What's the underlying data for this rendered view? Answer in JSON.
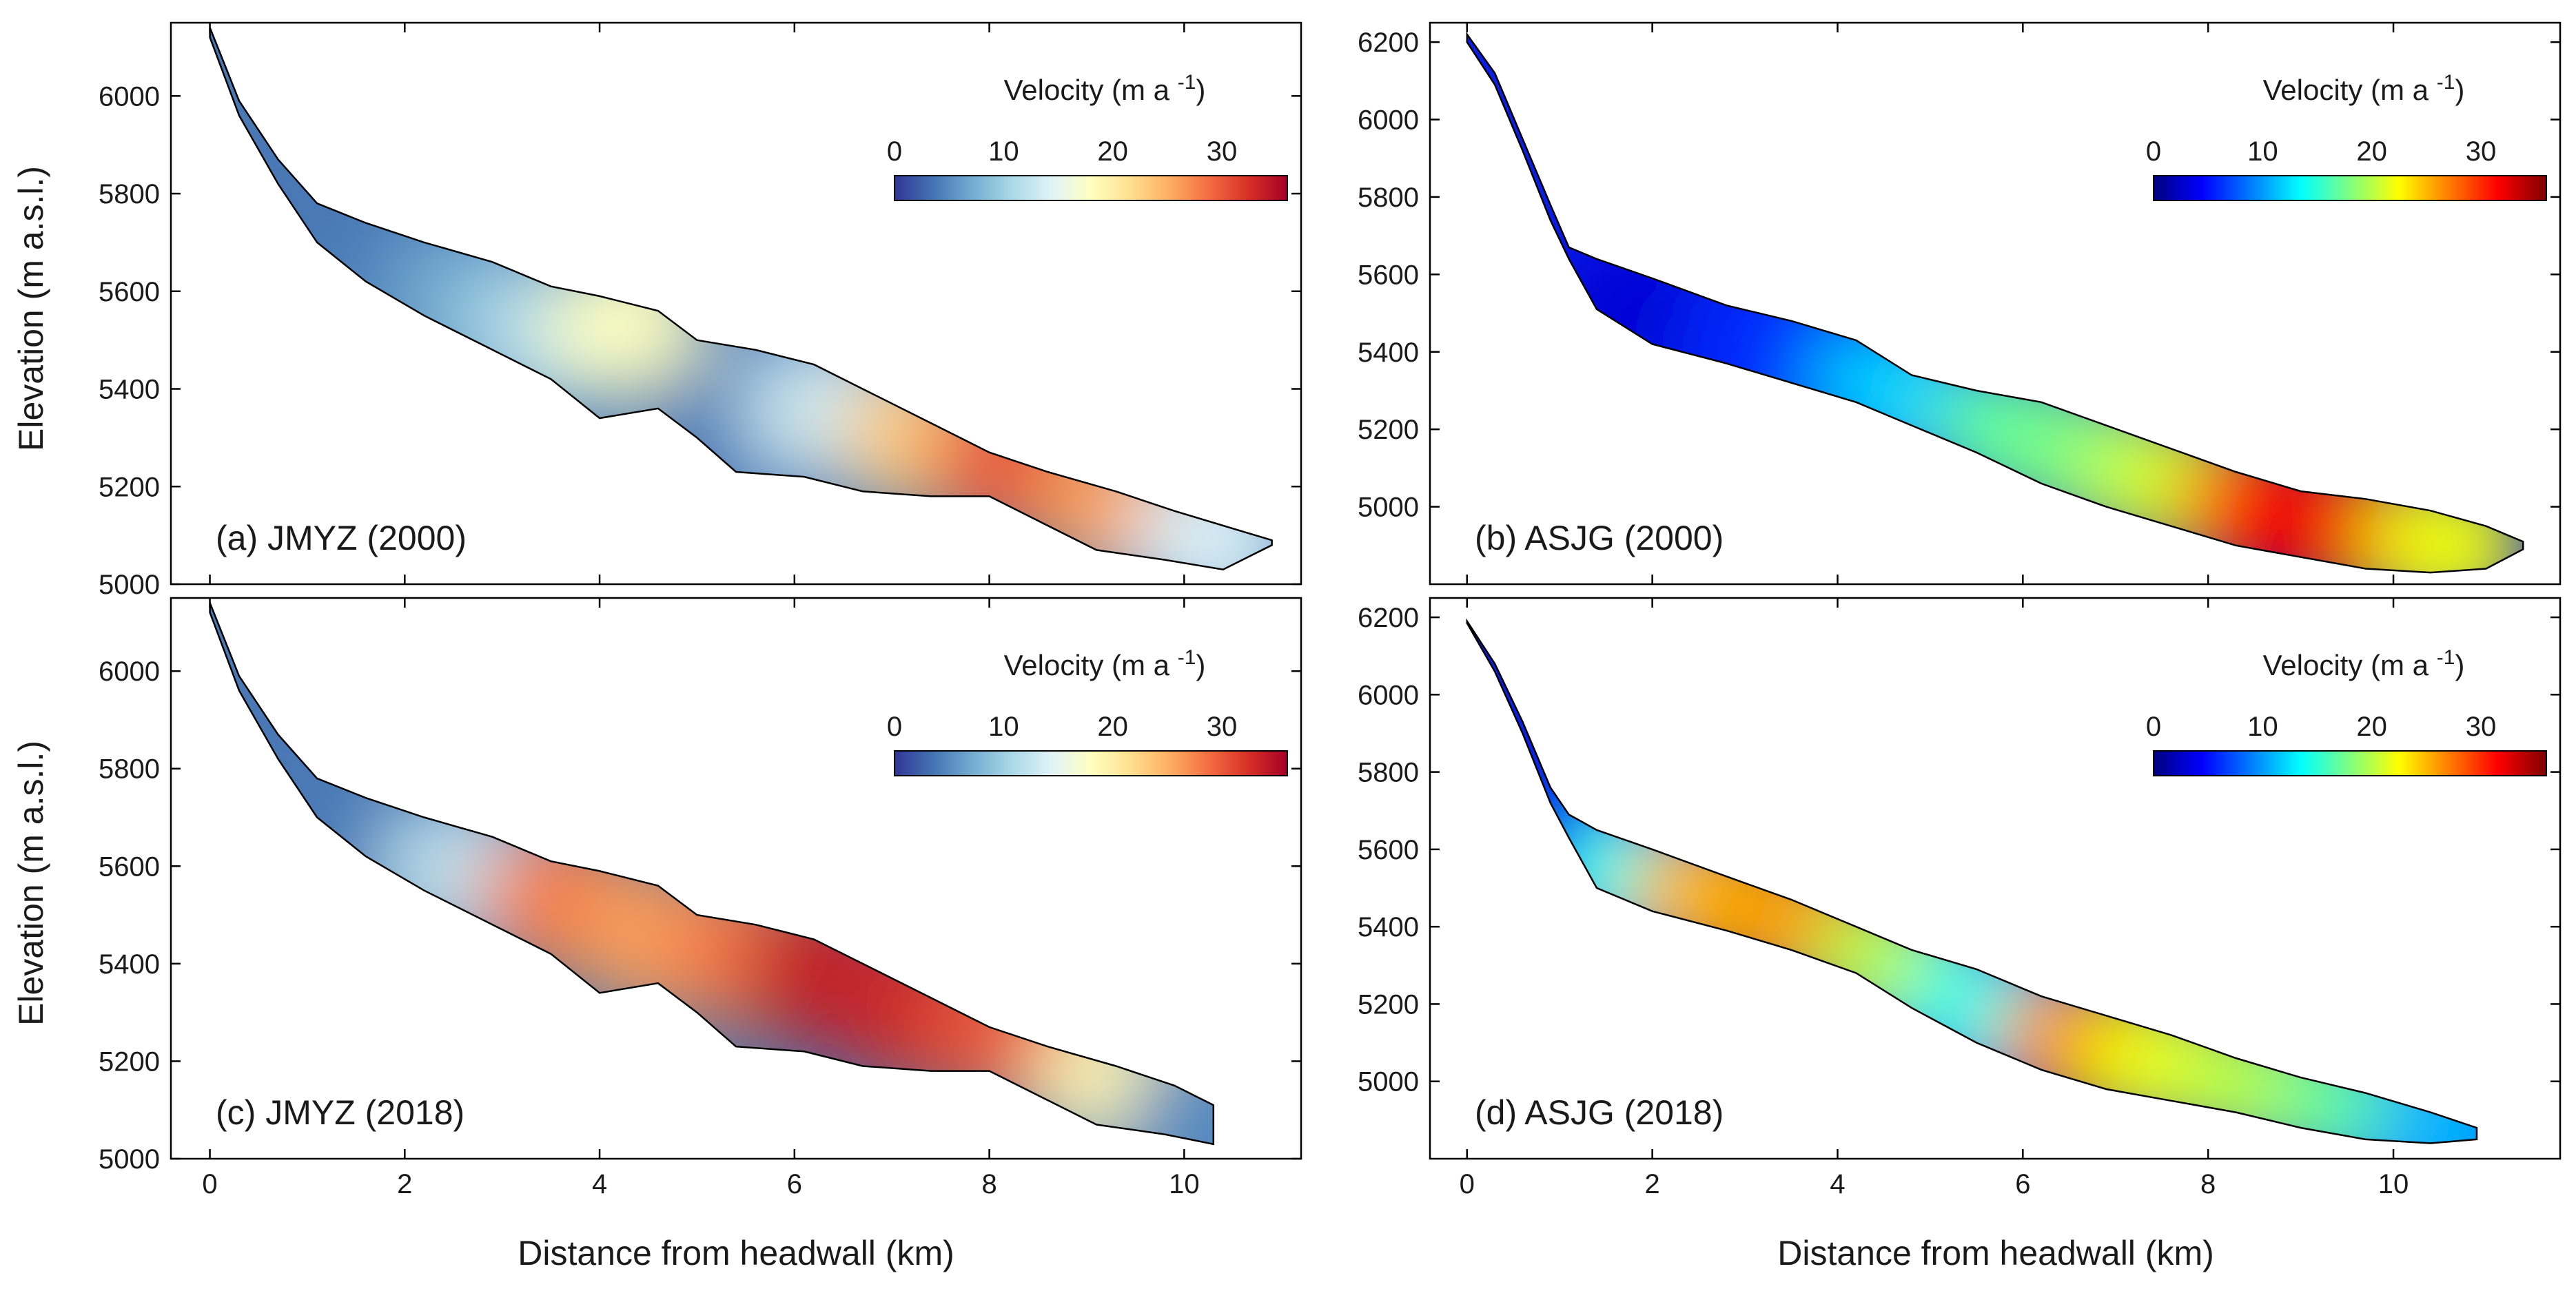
{
  "figure": {
    "ylabel": "Elevation (m a.s.l.)",
    "xlabel": "Distance from headwall (km)"
  },
  "chart_data": [
    {
      "panel": "a",
      "type": "heatmap",
      "title": "(a) JMYZ (2000)",
      "colorbar_label": "Velocity (m a",
      "colorbar_sup": "-1",
      "colorbar_close": ")",
      "colorbar_ticks": [
        "0",
        "10",
        "20",
        "30"
      ],
      "colorbar_range": [
        0,
        36
      ],
      "colormap": "RdYlBu",
      "xlim": [
        -0.4,
        11.2
      ],
      "ylim": [
        5000,
        6150
      ],
      "xticks": [
        "0",
        "2",
        "4",
        "6",
        "8",
        "10"
      ],
      "yticks": [
        "5000",
        "5200",
        "5400",
        "5600",
        "5800",
        "6000"
      ],
      "upper_boundary": [
        [
          0,
          6140
        ],
        [
          0.3,
          5990
        ],
        [
          0.7,
          5870
        ],
        [
          1.1,
          5780
        ],
        [
          1.6,
          5740
        ],
        [
          2.2,
          5700
        ],
        [
          2.9,
          5660
        ],
        [
          3.5,
          5610
        ],
        [
          4.0,
          5590
        ],
        [
          4.6,
          5560
        ],
        [
          5.0,
          5500
        ],
        [
          5.6,
          5480
        ],
        [
          6.2,
          5450
        ],
        [
          6.8,
          5390
        ],
        [
          7.4,
          5330
        ],
        [
          8.0,
          5270
        ],
        [
          8.6,
          5230
        ],
        [
          9.3,
          5190
        ],
        [
          9.9,
          5150
        ],
        [
          10.4,
          5120
        ],
        [
          10.9,
          5090
        ]
      ],
      "lower_boundary": [
        [
          0,
          6120
        ],
        [
          0.3,
          5960
        ],
        [
          0.7,
          5820
        ],
        [
          1.1,
          5700
        ],
        [
          1.6,
          5620
        ],
        [
          2.2,
          5550
        ],
        [
          2.9,
          5480
        ],
        [
          3.5,
          5420
        ],
        [
          4.0,
          5340
        ],
        [
          4.6,
          5360
        ],
        [
          5.0,
          5300
        ],
        [
          5.4,
          5230
        ],
        [
          6.1,
          5220
        ],
        [
          6.7,
          5190
        ],
        [
          7.4,
          5180
        ],
        [
          8.0,
          5180
        ],
        [
          8.6,
          5120
        ],
        [
          9.1,
          5070
        ],
        [
          9.8,
          5050
        ],
        [
          10.4,
          5030
        ],
        [
          10.9,
          5080
        ]
      ],
      "hotspots": [
        {
          "x": 1.3,
          "y": 5600,
          "v": 4
        },
        {
          "x": 2.6,
          "y": 5590,
          "v": 7
        },
        {
          "x": 3.4,
          "y": 5510,
          "v": 11
        },
        {
          "x": 4.3,
          "y": 5530,
          "v": 18
        },
        {
          "x": 5.3,
          "y": 5330,
          "v": 4
        },
        {
          "x": 6.3,
          "y": 5360,
          "v": 13
        },
        {
          "x": 7.3,
          "y": 5300,
          "v": 23
        },
        {
          "x": 8.2,
          "y": 5250,
          "v": 30
        },
        {
          "x": 9.3,
          "y": 5160,
          "v": 26
        },
        {
          "x": 10.3,
          "y": 5090,
          "v": 14
        }
      ]
    },
    {
      "panel": "b",
      "type": "heatmap",
      "title": "(b) ASJG (2000)",
      "colorbar_label": "Velocity (m a",
      "colorbar_sup": "-1",
      "colorbar_close": ")",
      "colorbar_ticks": [
        "0",
        "10",
        "20",
        "30"
      ],
      "colorbar_range": [
        0,
        36
      ],
      "colormap": "jet",
      "xlim": [
        -0.4,
        11.8
      ],
      "ylim": [
        4800,
        6250
      ],
      "xticks": [
        "0",
        "2",
        "4",
        "6",
        "8",
        "10"
      ],
      "yticks": [
        "5000",
        "5200",
        "5400",
        "5600",
        "5800",
        "6000",
        "6200"
      ],
      "upper_boundary": [
        [
          0,
          6220
        ],
        [
          0.3,
          6120
        ],
        [
          0.6,
          5950
        ],
        [
          0.9,
          5780
        ],
        [
          1.1,
          5670
        ],
        [
          1.4,
          5640
        ],
        [
          2.0,
          5590
        ],
        [
          2.8,
          5520
        ],
        [
          3.5,
          5480
        ],
        [
          4.2,
          5430
        ],
        [
          4.8,
          5340
        ],
        [
          5.5,
          5300
        ],
        [
          6.2,
          5270
        ],
        [
          6.9,
          5210
        ],
        [
          7.6,
          5150
        ],
        [
          8.3,
          5090
        ],
        [
          9.0,
          5040
        ],
        [
          9.7,
          5020
        ],
        [
          10.4,
          4990
        ],
        [
          11.0,
          4950
        ],
        [
          11.4,
          4910
        ]
      ],
      "lower_boundary": [
        [
          0,
          6200
        ],
        [
          0.3,
          6090
        ],
        [
          0.6,
          5920
        ],
        [
          0.9,
          5740
        ],
        [
          1.1,
          5640
        ],
        [
          1.4,
          5510
        ],
        [
          2.0,
          5420
        ],
        [
          2.8,
          5370
        ],
        [
          3.5,
          5320
        ],
        [
          4.2,
          5270
        ],
        [
          4.8,
          5210
        ],
        [
          5.5,
          5140
        ],
        [
          6.2,
          5060
        ],
        [
          6.9,
          5000
        ],
        [
          7.6,
          4950
        ],
        [
          8.3,
          4900
        ],
        [
          9.0,
          4870
        ],
        [
          9.7,
          4840
        ],
        [
          10.4,
          4830
        ],
        [
          11.0,
          4840
        ],
        [
          11.4,
          4890
        ]
      ],
      "hotspots": [
        {
          "x": 1.8,
          "y": 5500,
          "v": 3
        },
        {
          "x": 3.2,
          "y": 5420,
          "v": 6
        },
        {
          "x": 4.6,
          "y": 5300,
          "v": 12
        },
        {
          "x": 5.9,
          "y": 5190,
          "v": 17
        },
        {
          "x": 6.8,
          "y": 5120,
          "v": 18
        },
        {
          "x": 7.6,
          "y": 5060,
          "v": 21
        },
        {
          "x": 8.6,
          "y": 4990,
          "v": 31
        },
        {
          "x": 9.6,
          "y": 4940,
          "v": 32
        },
        {
          "x": 10.6,
          "y": 4900,
          "v": 22
        }
      ]
    },
    {
      "panel": "c",
      "type": "heatmap",
      "title": "(c) JMYZ (2018)",
      "colorbar_label": "Velocity (m a",
      "colorbar_sup": "-1",
      "colorbar_close": ")",
      "colorbar_ticks": [
        "0",
        "10",
        "20",
        "30"
      ],
      "colorbar_range": [
        0,
        36
      ],
      "colormap": "RdYlBu",
      "xlim": [
        -0.4,
        11.2
      ],
      "ylim": [
        5000,
        6150
      ],
      "xticks": [
        "0",
        "2",
        "4",
        "6",
        "8",
        "10"
      ],
      "yticks": [
        "5000",
        "5200",
        "5400",
        "5600",
        "5800",
        "6000"
      ],
      "upper_boundary": [
        [
          0,
          6140
        ],
        [
          0.3,
          5990
        ],
        [
          0.7,
          5870
        ],
        [
          1.1,
          5780
        ],
        [
          1.6,
          5740
        ],
        [
          2.2,
          5700
        ],
        [
          2.9,
          5660
        ],
        [
          3.5,
          5610
        ],
        [
          4.0,
          5590
        ],
        [
          4.6,
          5560
        ],
        [
          5.0,
          5500
        ],
        [
          5.6,
          5480
        ],
        [
          6.2,
          5450
        ],
        [
          6.8,
          5390
        ],
        [
          7.4,
          5330
        ],
        [
          8.0,
          5270
        ],
        [
          8.6,
          5230
        ],
        [
          9.3,
          5190
        ],
        [
          9.9,
          5150
        ],
        [
          10.3,
          5110
        ]
      ],
      "lower_boundary": [
        [
          0,
          6120
        ],
        [
          0.3,
          5960
        ],
        [
          0.7,
          5820
        ],
        [
          1.1,
          5700
        ],
        [
          1.6,
          5620
        ],
        [
          2.2,
          5550
        ],
        [
          2.9,
          5480
        ],
        [
          3.5,
          5420
        ],
        [
          4.0,
          5340
        ],
        [
          4.6,
          5360
        ],
        [
          5.0,
          5300
        ],
        [
          5.4,
          5230
        ],
        [
          6.1,
          5220
        ],
        [
          6.7,
          5190
        ],
        [
          7.4,
          5180
        ],
        [
          8.0,
          5180
        ],
        [
          8.6,
          5120
        ],
        [
          9.1,
          5070
        ],
        [
          9.8,
          5050
        ],
        [
          10.3,
          5030
        ]
      ],
      "hotspots": [
        {
          "x": 1.4,
          "y": 5620,
          "v": 4
        },
        {
          "x": 2.6,
          "y": 5590,
          "v": 12
        },
        {
          "x": 3.6,
          "y": 5530,
          "v": 28
        },
        {
          "x": 4.6,
          "y": 5450,
          "v": 26
        },
        {
          "x": 5.5,
          "y": 5420,
          "v": 28
        },
        {
          "x": 6.3,
          "y": 5380,
          "v": 34
        },
        {
          "x": 7.3,
          "y": 5300,
          "v": 33
        },
        {
          "x": 8.2,
          "y": 5250,
          "v": 30
        },
        {
          "x": 9.3,
          "y": 5160,
          "v": 19
        },
        {
          "x": 10.2,
          "y": 5070,
          "v": 5
        }
      ]
    },
    {
      "panel": "d",
      "type": "heatmap",
      "title": "(d) ASJG (2018)",
      "colorbar_label": "Velocity (m a",
      "colorbar_sup": "-1",
      "colorbar_close": ")",
      "colorbar_ticks": [
        "0",
        "10",
        "20",
        "30"
      ],
      "colorbar_range": [
        0,
        36
      ],
      "colormap": "jet",
      "xlim": [
        -0.4,
        11.8
      ],
      "ylim": [
        4800,
        6250
      ],
      "xticks": [
        "0",
        "2",
        "4",
        "6",
        "8",
        "10"
      ],
      "yticks": [
        "5000",
        "5200",
        "5400",
        "5600",
        "5800",
        "6000",
        "6200"
      ],
      "upper_boundary": [
        [
          0,
          6190
        ],
        [
          0.3,
          6080
        ],
        [
          0.6,
          5930
        ],
        [
          0.9,
          5760
        ],
        [
          1.1,
          5690
        ],
        [
          1.4,
          5650
        ],
        [
          2.0,
          5600
        ],
        [
          2.8,
          5530
        ],
        [
          3.5,
          5470
        ],
        [
          4.2,
          5400
        ],
        [
          4.8,
          5340
        ],
        [
          5.5,
          5290
        ],
        [
          6.2,
          5220
        ],
        [
          6.9,
          5170
        ],
        [
          7.6,
          5120
        ],
        [
          8.3,
          5060
        ],
        [
          9.0,
          5010
        ],
        [
          9.7,
          4970
        ],
        [
          10.4,
          4920
        ],
        [
          10.9,
          4880
        ]
      ],
      "lower_boundary": [
        [
          0,
          6185
        ],
        [
          0.3,
          6060
        ],
        [
          0.6,
          5900
        ],
        [
          0.9,
          5720
        ],
        [
          1.1,
          5630
        ],
        [
          1.4,
          5500
        ],
        [
          2.0,
          5440
        ],
        [
          2.8,
          5390
        ],
        [
          3.5,
          5340
        ],
        [
          4.2,
          5280
        ],
        [
          4.8,
          5190
        ],
        [
          5.5,
          5100
        ],
        [
          6.2,
          5030
        ],
        [
          6.9,
          4980
        ],
        [
          7.6,
          4950
        ],
        [
          8.3,
          4920
        ],
        [
          9.0,
          4880
        ],
        [
          9.7,
          4850
        ],
        [
          10.4,
          4840
        ],
        [
          10.9,
          4850
        ]
      ],
      "hotspots": [
        {
          "x": 1.6,
          "y": 5540,
          "v": 14
        },
        {
          "x": 2.6,
          "y": 5480,
          "v": 25
        },
        {
          "x": 3.6,
          "y": 5410,
          "v": 26
        },
        {
          "x": 4.6,
          "y": 5300,
          "v": 20
        },
        {
          "x": 5.6,
          "y": 5180,
          "v": 14
        },
        {
          "x": 6.6,
          "y": 5100,
          "v": 27
        },
        {
          "x": 7.5,
          "y": 5050,
          "v": 22
        },
        {
          "x": 8.5,
          "y": 4990,
          "v": 20
        },
        {
          "x": 9.6,
          "y": 4930,
          "v": 17
        },
        {
          "x": 10.6,
          "y": 4880,
          "v": 11
        }
      ]
    }
  ]
}
